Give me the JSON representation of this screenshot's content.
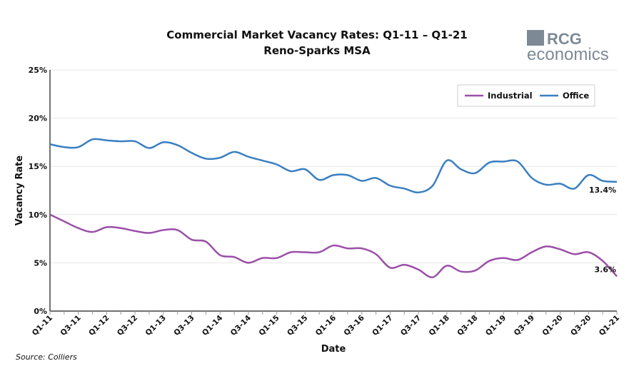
{
  "chart_data": {
    "type": "line",
    "title": "Commercial Market Vacancy Rates: Q1-11 – Q1-21",
    "subtitle": "Reno-Sparks MSA",
    "xlabel": "Date",
    "ylabel": "Vacancy Rate",
    "ylim": [
      0,
      25
    ],
    "yticks": [
      "0%",
      "5%",
      "10%",
      "15%",
      "20%",
      "25%"
    ],
    "grid": true,
    "legend": "top-right",
    "x": [
      "Q1-11",
      "Q2-11",
      "Q3-11",
      "Q4-11",
      "Q1-12",
      "Q2-12",
      "Q3-12",
      "Q4-12",
      "Q1-13",
      "Q2-13",
      "Q3-13",
      "Q4-13",
      "Q1-14",
      "Q2-14",
      "Q3-14",
      "Q4-14",
      "Q1-15",
      "Q2-15",
      "Q3-15",
      "Q4-15",
      "Q1-16",
      "Q2-16",
      "Q3-16",
      "Q4-16",
      "Q1-17",
      "Q2-17",
      "Q3-17",
      "Q4-17",
      "Q1-18",
      "Q2-18",
      "Q3-18",
      "Q4-18",
      "Q1-19",
      "Q2-19",
      "Q3-19",
      "Q4-19",
      "Q1-20",
      "Q2-20",
      "Q3-20",
      "Q4-20",
      "Q1-21"
    ],
    "xtick_labels": [
      "Q1-11",
      "Q3-11",
      "Q1-12",
      "Q3-12",
      "Q1-13",
      "Q3-13",
      "Q1-14",
      "Q3-14",
      "Q1-15",
      "Q3-15",
      "Q1-16",
      "Q3-16",
      "Q1-17",
      "Q3-17",
      "Q1-18",
      "Q3-18",
      "Q1-19",
      "Q3-19",
      "Q1-20",
      "Q3-20",
      "Q1-21"
    ],
    "series": [
      {
        "name": "Industrial",
        "color": "#9b4fa8",
        "end_label": "3.6%",
        "values": [
          10.0,
          9.3,
          8.6,
          8.2,
          8.7,
          8.6,
          8.3,
          8.1,
          8.4,
          8.4,
          7.4,
          7.2,
          5.8,
          5.6,
          5.0,
          5.5,
          5.5,
          6.1,
          6.1,
          6.1,
          6.8,
          6.5,
          6.5,
          5.9,
          4.5,
          4.8,
          4.3,
          3.5,
          4.7,
          4.1,
          4.2,
          5.2,
          5.5,
          5.3,
          6.1,
          6.7,
          6.4,
          5.9,
          6.1,
          5.2,
          3.6
        ]
      },
      {
        "name": "Office",
        "color": "#3a7fc1",
        "end_label": "13.4%",
        "values": [
          17.3,
          17.0,
          17.0,
          17.8,
          17.7,
          17.6,
          17.6,
          16.9,
          17.5,
          17.2,
          16.4,
          15.8,
          15.9,
          16.5,
          16.0,
          15.6,
          15.2,
          14.5,
          14.7,
          13.6,
          14.1,
          14.1,
          13.5,
          13.8,
          13.0,
          12.7,
          12.3,
          13.0,
          15.6,
          14.7,
          14.3,
          15.4,
          15.5,
          15.5,
          13.8,
          13.1,
          13.2,
          12.7,
          14.1,
          13.5,
          13.4
        ]
      }
    ]
  },
  "logo": {
    "top": "RCG",
    "bottom": "economics",
    "color": "#7d8a96"
  },
  "source": "Source: Colliers"
}
